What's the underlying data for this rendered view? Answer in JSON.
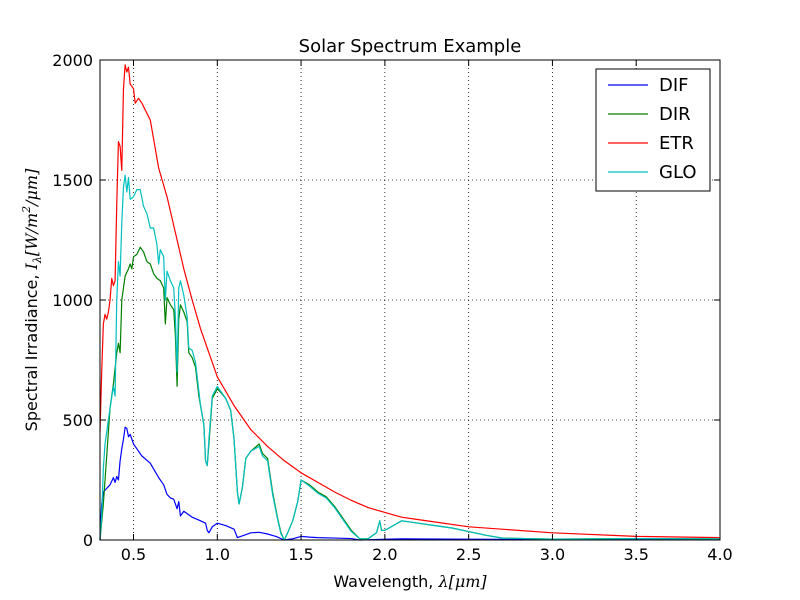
{
  "chart_data": {
    "type": "line",
    "title": "Solar Spectrum Example",
    "xlabel_text": "Wavelength, ",
    "xlabel_math": "λ[μm]",
    "ylabel_text": "Spectral Irradiance, ",
    "ylabel_math": "I",
    "ylabel_sub": "λ",
    "ylabel_math2": "[W/m",
    "ylabel_sup": "2",
    "ylabel_math3": "/μm]",
    "xlim": [
      0.3,
      4.0
    ],
    "ylim": [
      0,
      2000
    ],
    "xticks": [
      0.5,
      1.0,
      1.5,
      2.0,
      2.5,
      3.0,
      3.5,
      4.0
    ],
    "xtick_labels": [
      "0.5",
      "1.0",
      "1.5",
      "2.0",
      "2.5",
      "3.0",
      "3.5",
      "4.0"
    ],
    "yticks": [
      0,
      500,
      1000,
      1500,
      2000
    ],
    "ytick_labels": [
      "0",
      "500",
      "1000",
      "1500",
      "2000"
    ],
    "grid": true,
    "legend_position": "top-right",
    "series": [
      {
        "name": "DIF",
        "color": "#0000ff",
        "points": [
          [
            0.3,
            0
          ],
          [
            0.31,
            150
          ],
          [
            0.32,
            200
          ],
          [
            0.34,
            215
          ],
          [
            0.36,
            230
          ],
          [
            0.38,
            260
          ],
          [
            0.39,
            240
          ],
          [
            0.4,
            265
          ],
          [
            0.41,
            250
          ],
          [
            0.42,
            330
          ],
          [
            0.43,
            380
          ],
          [
            0.44,
            420
          ],
          [
            0.45,
            470
          ],
          [
            0.46,
            465
          ],
          [
            0.47,
            430
          ],
          [
            0.48,
            440
          ],
          [
            0.5,
            400
          ],
          [
            0.52,
            380
          ],
          [
            0.55,
            350
          ],
          [
            0.6,
            320
          ],
          [
            0.65,
            260
          ],
          [
            0.68,
            230
          ],
          [
            0.7,
            190
          ],
          [
            0.72,
            175
          ],
          [
            0.74,
            170
          ],
          [
            0.76,
            130
          ],
          [
            0.77,
            160
          ],
          [
            0.78,
            100
          ],
          [
            0.8,
            120
          ],
          [
            0.82,
            110
          ],
          [
            0.85,
            95
          ],
          [
            0.9,
            80
          ],
          [
            0.93,
            70
          ],
          [
            0.94,
            40
          ],
          [
            0.95,
            30
          ],
          [
            0.97,
            55
          ],
          [
            1.0,
            70
          ],
          [
            1.05,
            60
          ],
          [
            1.1,
            45
          ],
          [
            1.12,
            10
          ],
          [
            1.14,
            15
          ],
          [
            1.2,
            30
          ],
          [
            1.25,
            32
          ],
          [
            1.3,
            25
          ],
          [
            1.35,
            15
          ],
          [
            1.4,
            0
          ],
          [
            1.45,
            5
          ],
          [
            1.5,
            15
          ],
          [
            1.55,
            12
          ],
          [
            1.6,
            10
          ],
          [
            1.7,
            8
          ],
          [
            1.8,
            6
          ],
          [
            1.85,
            0
          ],
          [
            2.0,
            3
          ],
          [
            2.1,
            5
          ],
          [
            2.5,
            3
          ],
          [
            3.0,
            2
          ],
          [
            3.5,
            1
          ],
          [
            4.0,
            1
          ]
        ]
      },
      {
        "name": "DIR",
        "color": "#008000",
        "points": [
          [
            0.3,
            0
          ],
          [
            0.32,
            150
          ],
          [
            0.34,
            350
          ],
          [
            0.36,
            550
          ],
          [
            0.38,
            650
          ],
          [
            0.4,
            780
          ],
          [
            0.41,
            820
          ],
          [
            0.42,
            780
          ],
          [
            0.43,
            1000
          ],
          [
            0.45,
            1100
          ],
          [
            0.47,
            1130
          ],
          [
            0.48,
            1150
          ],
          [
            0.49,
            1130
          ],
          [
            0.5,
            1180
          ],
          [
            0.52,
            1190
          ],
          [
            0.54,
            1220
          ],
          [
            0.56,
            1200
          ],
          [
            0.58,
            1160
          ],
          [
            0.6,
            1150
          ],
          [
            0.62,
            1110
          ],
          [
            0.64,
            1090
          ],
          [
            0.66,
            1080
          ],
          [
            0.68,
            1050
          ],
          [
            0.69,
            900
          ],
          [
            0.7,
            1010
          ],
          [
            0.72,
            980
          ],
          [
            0.74,
            960
          ],
          [
            0.75,
            850
          ],
          [
            0.76,
            640
          ],
          [
            0.77,
            920
          ],
          [
            0.78,
            980
          ],
          [
            0.8,
            950
          ],
          [
            0.82,
            910
          ],
          [
            0.83,
            780
          ],
          [
            0.85,
            760
          ],
          [
            0.87,
            720
          ],
          [
            0.89,
            600
          ],
          [
            0.9,
            560
          ],
          [
            0.92,
            480
          ],
          [
            0.93,
            330
          ],
          [
            0.94,
            310
          ],
          [
            0.95,
            400
          ],
          [
            0.97,
            590
          ],
          [
            1.0,
            630
          ],
          [
            1.02,
            615
          ],
          [
            1.05,
            590
          ],
          [
            1.08,
            540
          ],
          [
            1.1,
            420
          ],
          [
            1.12,
            200
          ],
          [
            1.13,
            150
          ],
          [
            1.15,
            220
          ],
          [
            1.17,
            340
          ],
          [
            1.2,
            370
          ],
          [
            1.25,
            400
          ],
          [
            1.27,
            360
          ],
          [
            1.3,
            340
          ],
          [
            1.33,
            200
          ],
          [
            1.36,
            90
          ],
          [
            1.38,
            30
          ],
          [
            1.4,
            0
          ],
          [
            1.42,
            30
          ],
          [
            1.45,
            80
          ],
          [
            1.48,
            160
          ],
          [
            1.5,
            250
          ],
          [
            1.55,
            230
          ],
          [
            1.6,
            200
          ],
          [
            1.65,
            180
          ],
          [
            1.7,
            140
          ],
          [
            1.75,
            90
          ],
          [
            1.8,
            40
          ],
          [
            1.85,
            5
          ],
          [
            1.9,
            5
          ],
          [
            1.95,
            30
          ],
          [
            1.97,
            80
          ],
          [
            1.98,
            40
          ],
          [
            2.0,
            40
          ],
          [
            2.05,
            60
          ],
          [
            2.1,
            80
          ],
          [
            2.2,
            70
          ],
          [
            2.3,
            60
          ],
          [
            2.4,
            50
          ],
          [
            2.5,
            35
          ],
          [
            2.6,
            20
          ],
          [
            2.7,
            8
          ],
          [
            3.0,
            4
          ],
          [
            3.5,
            6
          ],
          [
            4.0,
            5
          ]
        ]
      },
      {
        "name": "ETR",
        "color": "#ff0000",
        "points": [
          [
            0.3,
            450
          ],
          [
            0.31,
            700
          ],
          [
            0.32,
            900
          ],
          [
            0.33,
            940
          ],
          [
            0.34,
            920
          ],
          [
            0.35,
            950
          ],
          [
            0.36,
            1000
          ],
          [
            0.37,
            1090
          ],
          [
            0.38,
            1060
          ],
          [
            0.39,
            1080
          ],
          [
            0.4,
            1400
          ],
          [
            0.41,
            1660
          ],
          [
            0.42,
            1640
          ],
          [
            0.43,
            1540
          ],
          [
            0.44,
            1880
          ],
          [
            0.45,
            1980
          ],
          [
            0.46,
            1950
          ],
          [
            0.47,
            1970
          ],
          [
            0.48,
            1900
          ],
          [
            0.5,
            1880
          ],
          [
            0.51,
            1820
          ],
          [
            0.53,
            1840
          ],
          [
            0.55,
            1820
          ],
          [
            0.6,
            1750
          ],
          [
            0.65,
            1550
          ],
          [
            0.7,
            1430
          ],
          [
            0.75,
            1280
          ],
          [
            0.8,
            1130
          ],
          [
            0.85,
            1000
          ],
          [
            0.9,
            880
          ],
          [
            0.95,
            780
          ],
          [
            1.0,
            680
          ],
          [
            1.1,
            560
          ],
          [
            1.2,
            460
          ],
          [
            1.3,
            390
          ],
          [
            1.4,
            330
          ],
          [
            1.5,
            280
          ],
          [
            1.6,
            240
          ],
          [
            1.7,
            200
          ],
          [
            1.8,
            165
          ],
          [
            1.9,
            135
          ],
          [
            2.0,
            115
          ],
          [
            2.1,
            95
          ],
          [
            2.2,
            85
          ],
          [
            2.3,
            75
          ],
          [
            2.5,
            55
          ],
          [
            3.0,
            30
          ],
          [
            3.5,
            15
          ],
          [
            4.0,
            10
          ]
        ]
      },
      {
        "name": "GLO",
        "color": "#00bfbf",
        "points": [
          [
            0.3,
            0
          ],
          [
            0.31,
            100
          ],
          [
            0.32,
            300
          ],
          [
            0.33,
            400
          ],
          [
            0.34,
            450
          ],
          [
            0.36,
            550
          ],
          [
            0.38,
            640
          ],
          [
            0.39,
            600
          ],
          [
            0.4,
            1000
          ],
          [
            0.41,
            1160
          ],
          [
            0.42,
            1100
          ],
          [
            0.43,
            1320
          ],
          [
            0.44,
            1470
          ],
          [
            0.45,
            1520
          ],
          [
            0.46,
            1450
          ],
          [
            0.47,
            1510
          ],
          [
            0.48,
            1420
          ],
          [
            0.5,
            1430
          ],
          [
            0.52,
            1460
          ],
          [
            0.54,
            1460
          ],
          [
            0.56,
            1390
          ],
          [
            0.58,
            1360
          ],
          [
            0.6,
            1300
          ],
          [
            0.62,
            1300
          ],
          [
            0.64,
            1230
          ],
          [
            0.65,
            1150
          ],
          [
            0.66,
            1210
          ],
          [
            0.68,
            1180
          ],
          [
            0.69,
            1000
          ],
          [
            0.7,
            1120
          ],
          [
            0.72,
            1080
          ],
          [
            0.74,
            1050
          ],
          [
            0.75,
            930
          ],
          [
            0.76,
            700
          ],
          [
            0.77,
            1050
          ],
          [
            0.78,
            1080
          ],
          [
            0.8,
            1020
          ],
          [
            0.82,
            930
          ],
          [
            0.83,
            800
          ],
          [
            0.85,
            790
          ],
          [
            0.87,
            740
          ],
          [
            0.89,
            620
          ],
          [
            0.9,
            560
          ],
          [
            0.92,
            480
          ],
          [
            0.93,
            330
          ],
          [
            0.94,
            310
          ],
          [
            0.95,
            420
          ],
          [
            0.97,
            600
          ],
          [
            1.0,
            640
          ],
          [
            1.02,
            620
          ],
          [
            1.05,
            590
          ],
          [
            1.08,
            540
          ],
          [
            1.1,
            420
          ],
          [
            1.12,
            200
          ],
          [
            1.13,
            150
          ],
          [
            1.15,
            220
          ],
          [
            1.17,
            340
          ],
          [
            1.2,
            370
          ],
          [
            1.25,
            390
          ],
          [
            1.27,
            350
          ],
          [
            1.3,
            330
          ],
          [
            1.33,
            190
          ],
          [
            1.36,
            85
          ],
          [
            1.38,
            25
          ],
          [
            1.4,
            0
          ],
          [
            1.42,
            30
          ],
          [
            1.45,
            80
          ],
          [
            1.48,
            160
          ],
          [
            1.5,
            250
          ],
          [
            1.55,
            225
          ],
          [
            1.6,
            195
          ],
          [
            1.65,
            175
          ],
          [
            1.7,
            135
          ],
          [
            1.75,
            85
          ],
          [
            1.8,
            35
          ],
          [
            1.85,
            5
          ],
          [
            1.9,
            5
          ],
          [
            1.95,
            30
          ],
          [
            1.97,
            80
          ],
          [
            1.98,
            40
          ],
          [
            2.0,
            40
          ],
          [
            2.05,
            60
          ],
          [
            2.1,
            80
          ],
          [
            2.2,
            70
          ],
          [
            2.3,
            60
          ],
          [
            2.4,
            50
          ],
          [
            2.5,
            35
          ],
          [
            2.6,
            20
          ],
          [
            2.7,
            8
          ],
          [
            3.0,
            4
          ],
          [
            3.5,
            6
          ],
          [
            4.0,
            5
          ]
        ]
      }
    ]
  }
}
